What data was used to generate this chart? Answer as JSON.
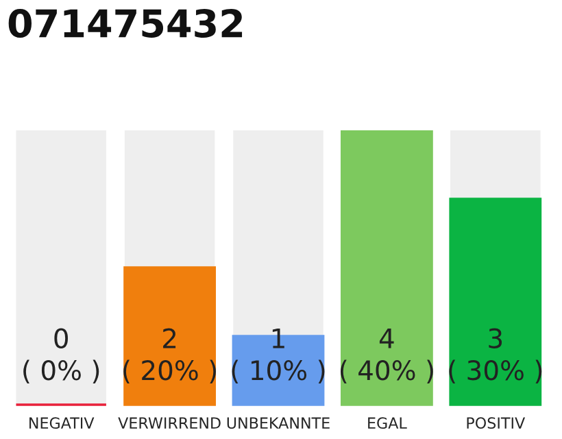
{
  "chart_data": {
    "type": "bar",
    "title": "071475432",
    "categories": [
      "NEGATIV",
      "VERWIRREND",
      "UNBEKANNTE",
      "EGAL",
      "POSITIV"
    ],
    "values": [
      0,
      2,
      1,
      4,
      3
    ],
    "colors": [
      "#e8213a",
      "#f07f0d",
      "#669ced",
      "#7dc95e",
      "#0bb443"
    ],
    "value_labels": [
      "0\n( 0% )",
      "2\n( 20% )",
      "1\n( 10% )",
      "4\n( 40% )",
      "3\n( 30% )"
    ]
  }
}
